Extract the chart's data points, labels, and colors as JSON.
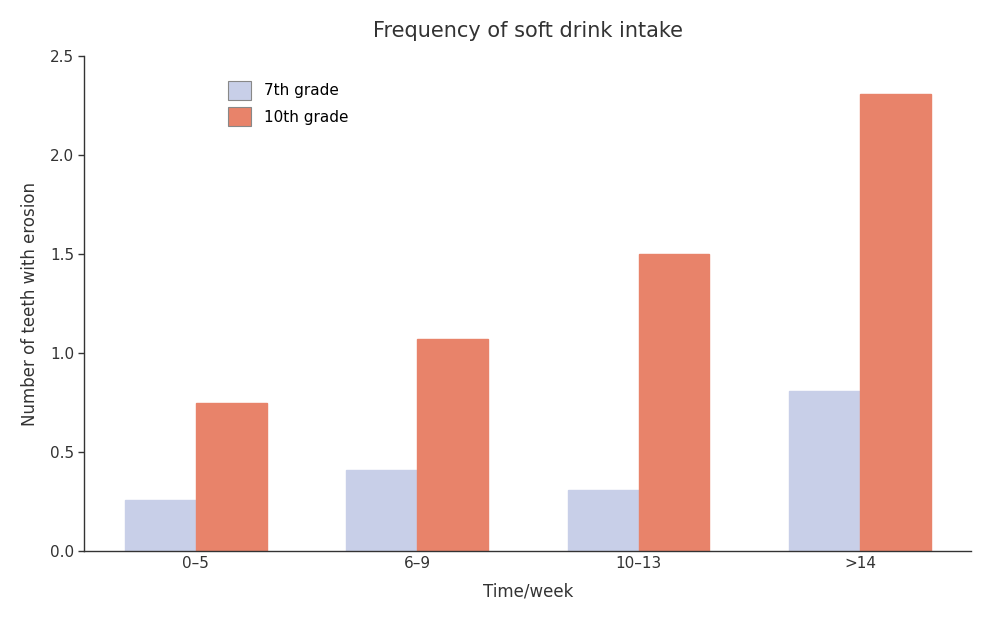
{
  "title": "Frequency of soft drink intake",
  "xlabel": "Time/week",
  "ylabel": "Number of teeth with erosion",
  "categories": [
    "0–5",
    "6–9",
    "10–13",
    ">14"
  ],
  "grade7_values": [
    0.26,
    0.41,
    0.31,
    0.81
  ],
  "grade10_values": [
    0.75,
    1.07,
    1.5,
    2.31
  ],
  "grade7_color": "#c8cfe8",
  "grade10_color": "#e8836a",
  "grade7_label": "7th grade",
  "grade10_label": "10th grade",
  "ylim": [
    0,
    2.5
  ],
  "yticks": [
    0.0,
    0.5,
    1.0,
    1.5,
    2.0,
    2.5
  ],
  "bar_width": 0.32,
  "title_fontsize": 15,
  "label_fontsize": 12,
  "tick_fontsize": 11,
  "legend_fontsize": 11,
  "spine_color": "#333333",
  "text_color": "#333333",
  "background_color": "#ffffff"
}
